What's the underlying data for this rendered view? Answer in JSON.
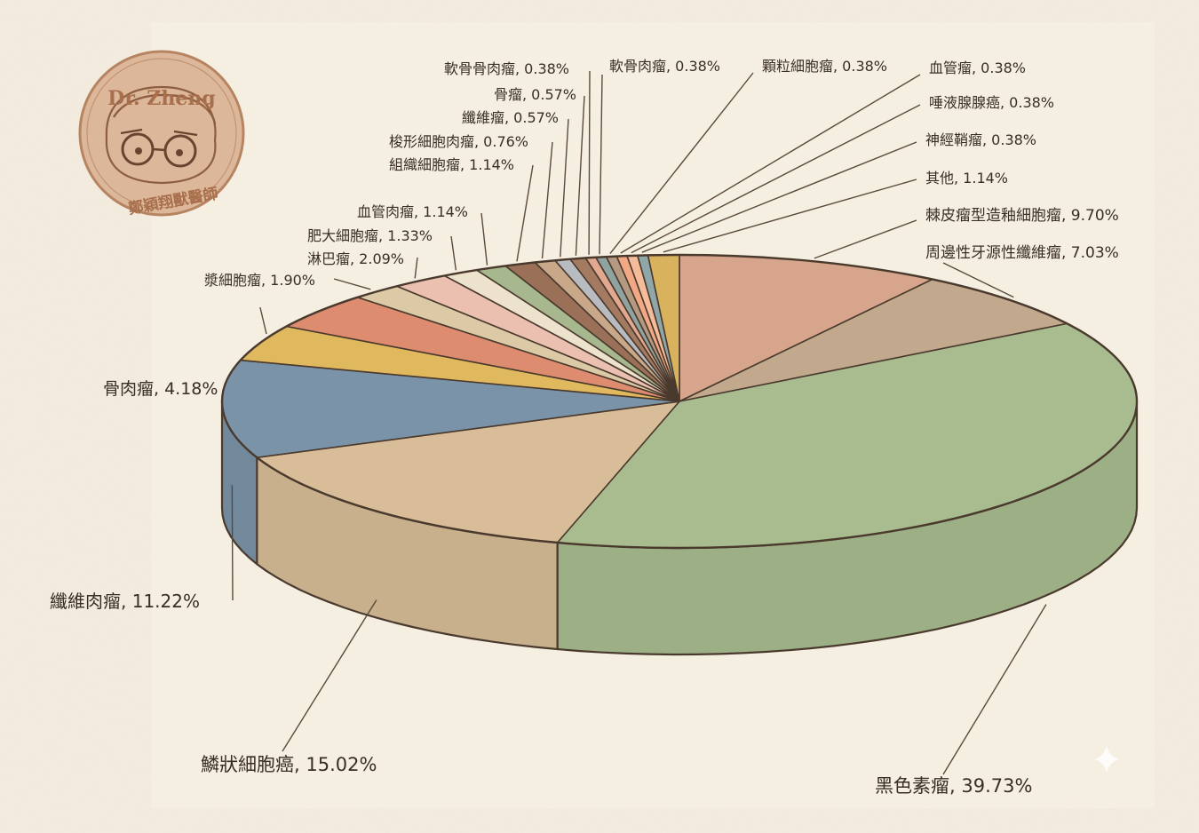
{
  "logo": {
    "name": "Dr. Zheng",
    "subtitle": "鄭穎翔獸醫師",
    "color": "#c4916b"
  },
  "chart_data": {
    "type": "pie",
    "title": "",
    "unit": "%",
    "slices": [
      {
        "name": "棘皮瘤型造釉細胞瘤",
        "value": 9.7,
        "label": "棘皮瘤型造釉細胞瘤, 9.70%",
        "color": "#d6a58b"
      },
      {
        "name": "周邊性牙源性纖維瘤",
        "value": 7.03,
        "label": "周邊性牙源性纖維瘤, 7.03%",
        "color": "#c2a98e"
      },
      {
        "name": "黑色素瘤",
        "value": 39.73,
        "label": "黑色素瘤, 39.73%",
        "color": "#a9bc8f"
      },
      {
        "name": "鱗狀細胞癌",
        "value": 15.02,
        "label": "鱗狀細胞癌, 15.02%",
        "color": "#d8bd98"
      },
      {
        "name": "纖維肉瘤",
        "value": 11.22,
        "label": "纖維肉瘤, 11.22%",
        "color": "#7b93a8"
      },
      {
        "name": "骨肉瘤",
        "value": 4.18,
        "label": "骨肉瘤, 4.18%",
        "color": "#e0b95e"
      },
      {
        "name": "骨肉瘤-2",
        "value": 4.18,
        "label": "",
        "color": "#de8c70"
      },
      {
        "name": "漿細胞瘤",
        "value": 1.9,
        "label": "漿細胞瘤, 1.90%",
        "color": "#dccaa6"
      },
      {
        "name": "淋巴瘤",
        "value": 2.09,
        "label": "淋巴瘤, 2.09%",
        "color": "#ebc0b0"
      },
      {
        "name": "肥大細胞瘤",
        "value": 1.33,
        "label": "肥大細胞瘤, 1.33%",
        "color": "#ede2cc"
      },
      {
        "name": "血管肉瘤",
        "value": 1.14,
        "label": "血管肉瘤, 1.14%",
        "color": "#a7b88e"
      },
      {
        "name": "組織細胞瘤",
        "value": 1.14,
        "label": "組織細胞瘤, 1.14%",
        "color": "#9a7058"
      },
      {
        "name": "梭形細胞肉瘤",
        "value": 0.76,
        "label": "梭形細胞肉瘤, 0.76%",
        "color": "#c9a88a"
      },
      {
        "name": "纖維瘤",
        "value": 0.57,
        "label": "纖維瘤, 0.57%",
        "color": "#b8bcc0"
      },
      {
        "name": "骨瘤",
        "value": 0.57,
        "label": "骨瘤, 0.57%",
        "color": "#a47a61"
      },
      {
        "name": "軟骨骨肉瘤",
        "value": 0.38,
        "label": "軟骨骨肉瘤, 0.38%",
        "color": "#e2a890"
      },
      {
        "name": "軟骨肉瘤",
        "value": 0.38,
        "label": "軟骨肉瘤, 0.38%",
        "color": "#8fa4a0"
      },
      {
        "name": "顆粒細胞瘤",
        "value": 0.38,
        "label": "顆粒細胞瘤, 0.38%",
        "color": "#b59a82"
      },
      {
        "name": "血管瘤",
        "value": 0.38,
        "label": "血管瘤, 0.38%",
        "color": "#f2a884"
      },
      {
        "name": "唾液腺腺癌",
        "value": 0.38,
        "label": "唾液腺腺癌, 0.38%",
        "color": "#f4bc9a"
      },
      {
        "name": "神經鞘瘤",
        "value": 0.38,
        "label": "神經鞘瘤, 0.38%",
        "color": "#8fa7a8"
      },
      {
        "name": "其他",
        "value": 1.14,
        "label": "其他, 1.14%",
        "color": "#d9b25e"
      }
    ]
  }
}
